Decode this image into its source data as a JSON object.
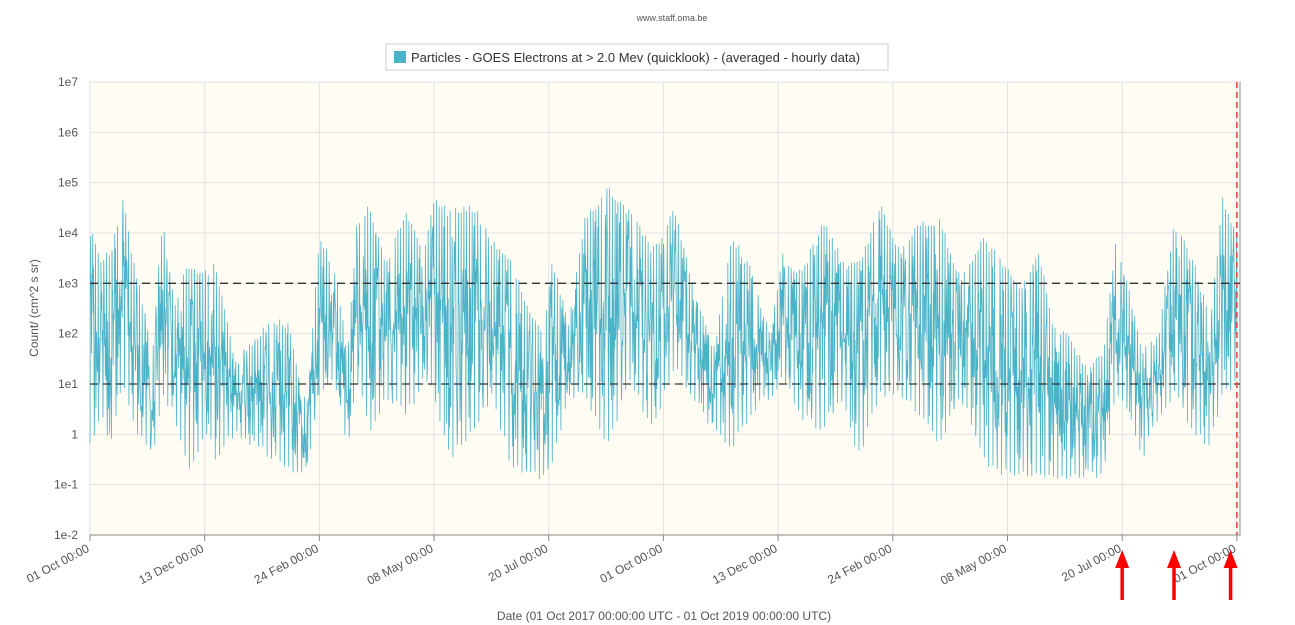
{
  "credit": "www.staff.oma.be",
  "chart_data": {
    "type": "line",
    "legend": {
      "label": "Particles - GOES Electrons at > 2.0 Mev (quicklook) -  (averaged - hourly data)",
      "color": "#4bb3c8",
      "placement": "top-center"
    },
    "ylabel": "Count/ (cm^2 s sr)",
    "xlabel": "Date (01 Oct 2017 00:00:00 UTC - 01 Oct 2019 00:00:00 UTC)",
    "y_scale": "log",
    "ylim": [
      0.01,
      10000000
    ],
    "y_ticks": [
      "1e-2",
      "1e-1",
      "1",
      "1e1",
      "1e2",
      "1e3",
      "1e4",
      "1e5",
      "1e6",
      "1e7"
    ],
    "xlim": [
      "2017-10-01",
      "2019-10-03"
    ],
    "x_ticks": [
      {
        "date": "2017-10-01",
        "label": "01 Oct 00:00"
      },
      {
        "date": "2017-12-13",
        "label": "13 Dec 00:00"
      },
      {
        "date": "2018-02-24",
        "label": "24 Feb 00:00"
      },
      {
        "date": "2018-05-08",
        "label": "08 May 00:00"
      },
      {
        "date": "2018-07-20",
        "label": "20 Jul 00:00"
      },
      {
        "date": "2018-10-01",
        "label": "01 Oct 00:00"
      },
      {
        "date": "2018-12-13",
        "label": "13 Dec 00:00"
      },
      {
        "date": "2019-02-24",
        "label": "24 Feb 00:00"
      },
      {
        "date": "2019-05-08",
        "label": "08 May 00:00"
      },
      {
        "date": "2019-07-20",
        "label": "20 Jul 00:00"
      },
      {
        "date": "2019-10-01",
        "label": "01 Oct 00:00"
      }
    ],
    "grid": true,
    "plot_background": "#fffcf4",
    "thresholds": [
      {
        "value": 1000,
        "style": "dashed",
        "color": "#333333"
      },
      {
        "value": 10,
        "style": "dashed",
        "color": "#333333"
      }
    ],
    "current_time_marker": {
      "date": "2019-10-01",
      "color": "#e8413a",
      "style": "dashed"
    },
    "annotations": [
      {
        "type": "arrow",
        "date": "2019-07-20",
        "color": "#ff0000"
      },
      {
        "type": "arrow",
        "date": "2019-08-22",
        "color": "#ff0000"
      },
      {
        "type": "arrow",
        "date": "2019-09-27",
        "color": "#ff0000"
      }
    ],
    "series": [
      {
        "color": "#4bb3c8",
        "envelope": [
          {
            "date": "2017-10-01",
            "low": 0.5,
            "high": 20000
          },
          {
            "date": "2017-10-08",
            "low": 2,
            "high": 4000
          },
          {
            "date": "2017-10-14",
            "low": 0.5,
            "high": 5000
          },
          {
            "date": "2017-10-22",
            "low": 10,
            "high": 50000
          },
          {
            "date": "2017-10-30",
            "low": 1,
            "high": 2000
          },
          {
            "date": "2017-11-10",
            "low": 0.3,
            "high": 60
          },
          {
            "date": "2017-11-16",
            "low": 5,
            "high": 20000
          },
          {
            "date": "2017-11-24",
            "low": 2,
            "high": 400
          },
          {
            "date": "2017-12-02",
            "low": 0.15,
            "high": 3000
          },
          {
            "date": "2017-12-14",
            "low": 1,
            "high": 2000
          },
          {
            "date": "2017-12-20",
            "low": 0.3,
            "high": 3000
          },
          {
            "date": "2018-01-02",
            "low": 1,
            "high": 30
          },
          {
            "date": "2018-01-14",
            "low": 0.5,
            "high": 100
          },
          {
            "date": "2018-01-24",
            "low": 0.3,
            "high": 200
          },
          {
            "date": "2018-02-04",
            "low": 0.15,
            "high": 200
          },
          {
            "date": "2018-02-16",
            "low": 0.15,
            "high": 4
          },
          {
            "date": "2018-02-24",
            "low": 5,
            "high": 10000
          },
          {
            "date": "2018-03-06",
            "low": 10,
            "high": 2000
          },
          {
            "date": "2018-03-14",
            "low": 0.5,
            "high": 50
          },
          {
            "date": "2018-03-20",
            "low": 10,
            "high": 20000
          },
          {
            "date": "2018-03-28",
            "low": 1,
            "high": 40000
          },
          {
            "date": "2018-04-08",
            "low": 5,
            "high": 3000
          },
          {
            "date": "2018-04-20",
            "low": 2,
            "high": 30000
          },
          {
            "date": "2018-05-02",
            "low": 10,
            "high": 5000
          },
          {
            "date": "2018-05-08",
            "low": 5,
            "high": 60000
          },
          {
            "date": "2018-05-18",
            "low": 0.3,
            "high": 30000
          },
          {
            "date": "2018-06-02",
            "low": 1,
            "high": 40000
          },
          {
            "date": "2018-06-14",
            "low": 5,
            "high": 8000
          },
          {
            "date": "2018-06-26",
            "low": 0.2,
            "high": 3000
          },
          {
            "date": "2018-07-06",
            "low": 0.13,
            "high": 500
          },
          {
            "date": "2018-07-16",
            "low": 0.13,
            "high": 100
          },
          {
            "date": "2018-07-22",
            "low": 0.2,
            "high": 3000
          },
          {
            "date": "2018-08-02",
            "low": 5,
            "high": 200
          },
          {
            "date": "2018-08-12",
            "low": 5,
            "high": 20000
          },
          {
            "date": "2018-08-26",
            "low": 0.5,
            "high": 100000
          },
          {
            "date": "2018-09-10",
            "low": 10,
            "high": 30000
          },
          {
            "date": "2018-09-24",
            "low": 1,
            "high": 5000
          },
          {
            "date": "2018-10-08",
            "low": 20,
            "high": 40000
          },
          {
            "date": "2018-10-20",
            "low": 5,
            "high": 1000
          },
          {
            "date": "2018-11-02",
            "low": 1,
            "high": 50
          },
          {
            "date": "2018-11-14",
            "low": 0.5,
            "high": 10000
          },
          {
            "date": "2018-11-26",
            "low": 2,
            "high": 2000
          },
          {
            "date": "2018-12-08",
            "low": 5,
            "high": 100
          },
          {
            "date": "2018-12-16",
            "low": 10,
            "high": 4000
          },
          {
            "date": "2018-12-28",
            "low": 2,
            "high": 2000
          },
          {
            "date": "2019-01-10",
            "low": 1,
            "high": 20000
          },
          {
            "date": "2019-01-22",
            "low": 5,
            "high": 4000
          },
          {
            "date": "2019-02-02",
            "low": 0.3,
            "high": 3000
          },
          {
            "date": "2019-02-16",
            "low": 5,
            "high": 40000
          },
          {
            "date": "2019-03-01",
            "low": 5,
            "high": 5000
          },
          {
            "date": "2019-03-14",
            "low": 2,
            "high": 20000
          },
          {
            "date": "2019-03-26",
            "low": 0.5,
            "high": 20000
          },
          {
            "date": "2019-04-08",
            "low": 5,
            "high": 1500
          },
          {
            "date": "2019-04-22",
            "low": 0.3,
            "high": 10000
          },
          {
            "date": "2019-05-04",
            "low": 0.13,
            "high": 3000
          },
          {
            "date": "2019-05-16",
            "low": 0.13,
            "high": 1000
          },
          {
            "date": "2019-05-28",
            "low": 0.13,
            "high": 5000
          },
          {
            "date": "2019-06-06",
            "low": 0.13,
            "high": 200
          },
          {
            "date": "2019-06-16",
            "low": 0.13,
            "high": 100
          },
          {
            "date": "2019-06-26",
            "low": 0.13,
            "high": 30
          },
          {
            "date": "2019-07-08",
            "low": 0.13,
            "high": 40
          },
          {
            "date": "2019-07-16",
            "low": 5,
            "high": 8000
          },
          {
            "date": "2019-07-24",
            "low": 2,
            "high": 1000
          },
          {
            "date": "2019-08-02",
            "low": 0.3,
            "high": 50
          },
          {
            "date": "2019-08-12",
            "low": 2,
            "high": 100
          },
          {
            "date": "2019-08-22",
            "low": 5,
            "high": 20000
          },
          {
            "date": "2019-09-04",
            "low": 1,
            "high": 3000
          },
          {
            "date": "2019-09-14",
            "low": 0.5,
            "high": 200
          },
          {
            "date": "2019-09-22",
            "low": 5,
            "high": 60000
          },
          {
            "date": "2019-10-01",
            "low": 10,
            "high": 10000
          }
        ]
      }
    ]
  }
}
